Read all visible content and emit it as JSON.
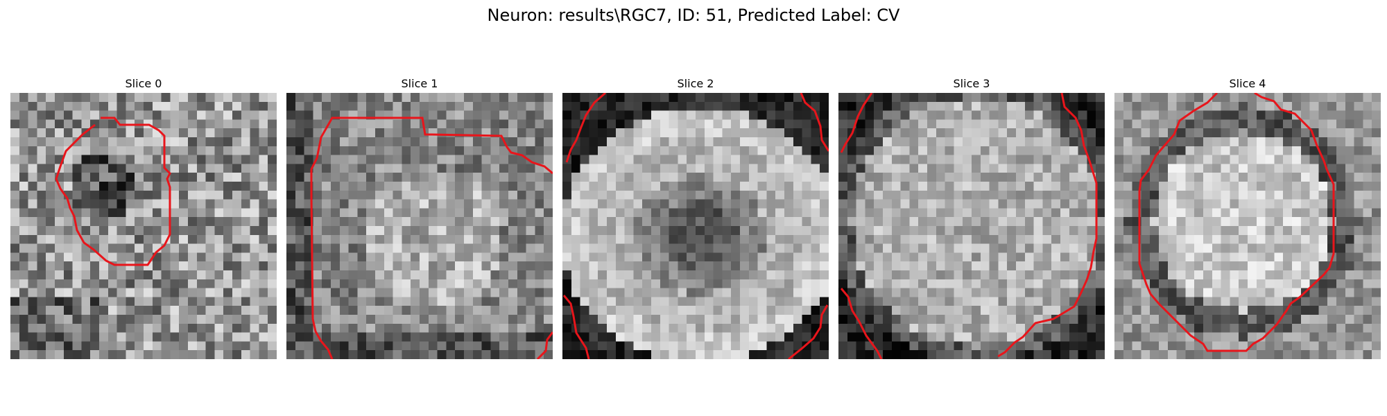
{
  "title": "Neuron: results\\RGC7, ID: 51, Predicted Label: CV",
  "slices": [
    {
      "label": "Slice 0",
      "pattern": "dark-blob"
    },
    {
      "label": "Slice 1",
      "pattern": "bright-blob"
    },
    {
      "label": "Slice 2",
      "pattern": "ring-dark-center"
    },
    {
      "label": "Slice 3",
      "pattern": "bright-ring"
    },
    {
      "label": "Slice 4",
      "pattern": "bright-blob-round"
    }
  ],
  "contour_color": "#e8151b",
  "colormap": "gray"
}
